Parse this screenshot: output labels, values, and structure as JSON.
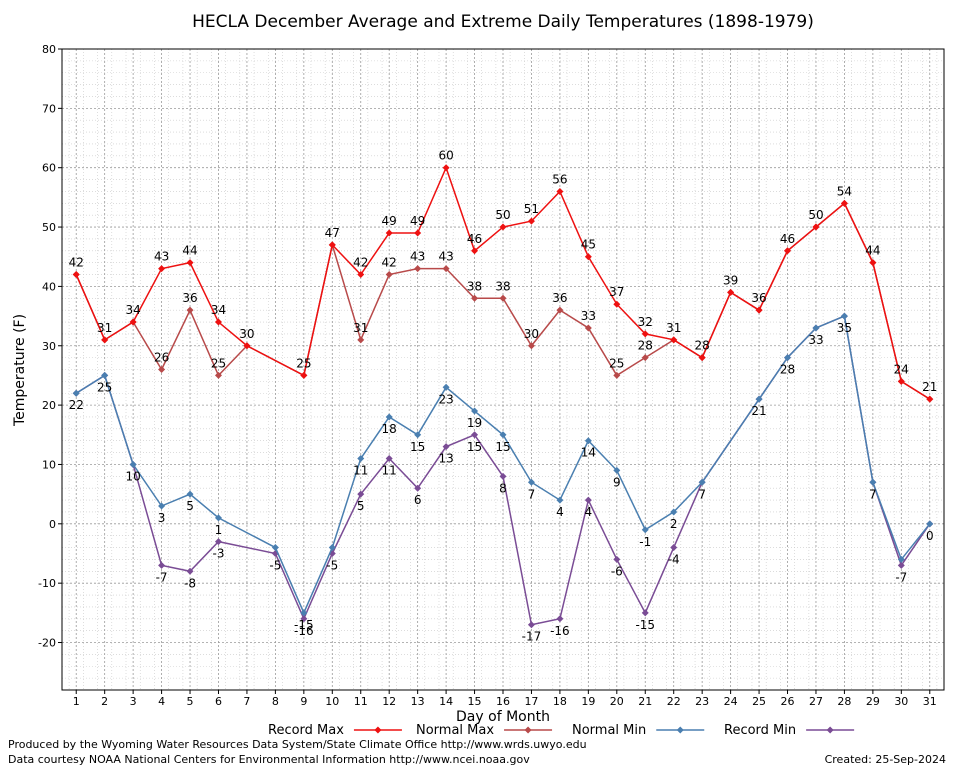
{
  "chart_data": {
    "type": "line",
    "title": "HECLA December Average and Extreme Daily Temperatures (1898-1979)",
    "xlabel": "Day of Month",
    "ylabel": "Temperature (F)",
    "ylim": [
      -28,
      80
    ],
    "yticks": [
      -20,
      -10,
      0,
      10,
      20,
      30,
      40,
      50,
      60,
      70,
      80
    ],
    "x": [
      1,
      2,
      3,
      4,
      5,
      6,
      7,
      8,
      9,
      10,
      11,
      12,
      13,
      14,
      15,
      16,
      17,
      18,
      19,
      20,
      21,
      22,
      23,
      24,
      25,
      26,
      27,
      28,
      29,
      30,
      31
    ],
    "grid": true,
    "legend_position": "bottom",
    "series": [
      {
        "name": "Record Max",
        "color": "#ee1111",
        "values": [
          42,
          31,
          34,
          43,
          44,
          34,
          30,
          null,
          25,
          47,
          42,
          49,
          49,
          60,
          46,
          50,
          51,
          56,
          45,
          37,
          32,
          31,
          28,
          39,
          36,
          46,
          50,
          54,
          44,
          24,
          21
        ],
        "labels": [
          "42",
          "31",
          "34",
          "43",
          "44",
          "34",
          "30",
          "",
          "25",
          "47",
          "42",
          "49",
          "49",
          "60",
          "46",
          "50",
          "51",
          "56",
          "45",
          "37",
          "32",
          "31",
          "28",
          "39",
          "36",
          "46",
          "50",
          "54",
          "44",
          "24",
          "21"
        ]
      },
      {
        "name": "Normal Max",
        "color": "#b84a4a",
        "values": [
          42,
          31,
          34,
          26,
          36,
          25,
          30,
          null,
          25,
          47,
          31,
          42,
          43,
          43,
          38,
          38,
          30,
          36,
          33,
          25,
          28,
          31,
          28,
          39,
          36,
          46,
          50,
          54,
          44,
          24,
          21
        ],
        "labels": [
          "",
          "",
          "",
          "26",
          "36",
          "25",
          "",
          "",
          "",
          "",
          "31",
          "42",
          "43",
          "43",
          "38",
          "38",
          "30",
          "36",
          "33",
          "25",
          "28",
          "",
          "",
          "",
          "",
          "",
          "",
          "",
          "",
          "",
          ""
        ]
      },
      {
        "name": "Normal Min",
        "color": "#4a7fb0",
        "values": [
          22,
          25,
          10,
          3,
          5,
          1,
          null,
          -4,
          -15,
          -4,
          11,
          18,
          15,
          23,
          19,
          15,
          7,
          4,
          14,
          9,
          -1,
          2,
          7,
          null,
          21,
          28,
          33,
          35,
          7,
          -6,
          0
        ],
        "labels": [
          "",
          "",
          "",
          "3",
          "5",
          "1",
          "",
          "",
          "-15",
          "",
          "11",
          "18",
          "15",
          "23",
          "19",
          "15",
          "7",
          "4",
          "14",
          "9",
          "-1",
          "2",
          "",
          "",
          "",
          "",
          "",
          "",
          "",
          "",
          ""
        ]
      },
      {
        "name": "Record Min",
        "color": "#7a4c95",
        "values": [
          22,
          25,
          10,
          -7,
          -8,
          -3,
          null,
          -5,
          -16,
          -5,
          5,
          11,
          6,
          13,
          15,
          8,
          -17,
          -16,
          4,
          -6,
          -15,
          -4,
          7,
          null,
          21,
          28,
          33,
          35,
          7,
          -7,
          0
        ],
        "labels": [
          "22",
          "25",
          "10",
          "-7",
          "-8",
          "-3",
          "",
          "-5",
          "-16",
          "-5",
          "5",
          "11",
          "6",
          "13",
          "15",
          "8",
          "-17",
          "-16",
          "4",
          "-6",
          "-15",
          "-4",
          "7",
          "",
          "21",
          "28",
          "33",
          "35",
          "7",
          "-7",
          "0"
        ]
      }
    ]
  },
  "footer": {
    "produced_by": "Produced by the Wyoming Water Resources Data System/State Climate Office http://www.wrds.uwyo.edu",
    "courtesy": "Data courtesy NOAA National Centers for Environmental Information http://www.ncei.noaa.gov",
    "created": "Created:  25-Sep-2024"
  }
}
